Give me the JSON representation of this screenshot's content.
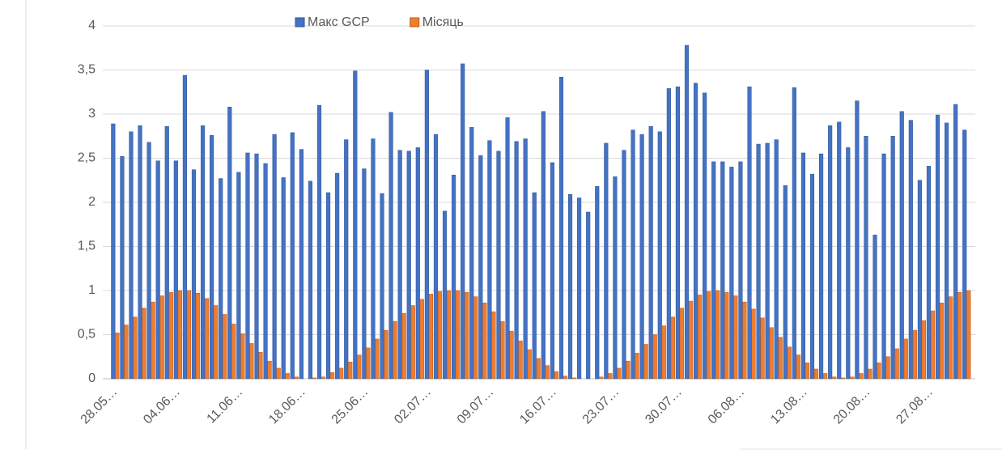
{
  "chart_data": {
    "type": "bar",
    "categories": [
      "28.05…",
      null,
      null,
      null,
      null,
      null,
      null,
      "04.06…",
      null,
      null,
      null,
      null,
      null,
      null,
      "11.06…",
      null,
      null,
      null,
      null,
      null,
      null,
      "18.06…",
      null,
      null,
      null,
      null,
      null,
      null,
      "25.06…",
      null,
      null,
      null,
      null,
      null,
      null,
      "02.07…",
      null,
      null,
      null,
      null,
      null,
      null,
      "09.07…",
      null,
      null,
      null,
      null,
      null,
      null,
      "16.07…",
      null,
      null,
      null,
      null,
      null,
      null,
      "23.07…",
      null,
      null,
      null,
      null,
      null,
      null,
      "30.07…",
      null,
      null,
      null,
      null,
      null,
      null,
      "06.08…",
      null,
      null,
      null,
      null,
      null,
      null,
      "13.08…",
      null,
      null,
      null,
      null,
      null,
      null,
      "20.08…",
      null,
      null,
      null,
      null,
      null,
      null,
      "27.08…",
      null,
      null,
      null,
      null
    ],
    "series": [
      {
        "name": "Макс GCP",
        "color": "#4472c4",
        "values": [
          2.89,
          2.52,
          2.8,
          2.87,
          2.68,
          2.47,
          2.86,
          2.47,
          3.44,
          2.37,
          2.87,
          2.76,
          2.27,
          3.08,
          2.34,
          2.56,
          2.55,
          2.44,
          2.77,
          2.28,
          2.79,
          2.6,
          2.24,
          3.1,
          2.11,
          2.33,
          2.71,
          3.49,
          2.38,
          2.72,
          2.1,
          3.02,
          2.59,
          2.58,
          2.62,
          3.5,
          2.77,
          1.9,
          2.31,
          3.57,
          2.85,
          2.53,
          2.7,
          2.58,
          2.96,
          2.69,
          2.72,
          2.11,
          3.03,
          2.45,
          3.42,
          2.09,
          2.05,
          1.89,
          2.18,
          2.67,
          2.29,
          2.59,
          2.82,
          2.77,
          2.86,
          2.8,
          3.29,
          3.31,
          3.78,
          3.35,
          3.24,
          2.46,
          2.46,
          2.4,
          2.46,
          3.31,
          2.66,
          2.67,
          2.71,
          2.19,
          3.3,
          2.56,
          2.32,
          2.55,
          2.87,
          2.91,
          2.62,
          3.15,
          2.75,
          1.63,
          2.55,
          2.75,
          3.03,
          2.93,
          2.25,
          2.41,
          2.99,
          2.9,
          3.11,
          2.82
        ]
      },
      {
        "name": "Місяць",
        "color": "#ed7d31",
        "values": [
          0.52,
          0.61,
          0.7,
          0.8,
          0.87,
          0.94,
          0.98,
          1,
          1,
          0.97,
          0.91,
          0.83,
          0.73,
          0.62,
          0.51,
          0.4,
          0.3,
          0.2,
          0.12,
          0.06,
          0.02,
          0,
          0.01,
          0.02,
          0.07,
          0.12,
          0.19,
          0.27,
          0.35,
          0.45,
          0.55,
          0.65,
          0.74,
          0.83,
          0.9,
          0.96,
          0.99,
          1,
          1,
          0.98,
          0.93,
          0.86,
          0.76,
          0.65,
          0.54,
          0.43,
          0.33,
          0.23,
          0.15,
          0.08,
          0.03,
          0.01,
          0,
          0,
          0.02,
          0.06,
          0.12,
          0.2,
          0.29,
          0.39,
          0.5,
          0.6,
          0.7,
          0.8,
          0.88,
          0.95,
          0.99,
          1,
          0.98,
          0.94,
          0.87,
          0.79,
          0.69,
          0.58,
          0.47,
          0.36,
          0.27,
          0.18,
          0.11,
          0.06,
          0.02,
          0.01,
          0.02,
          0.06,
          0.11,
          0.18,
          0.25,
          0.34,
          0.45,
          0.55,
          0.66,
          0.77,
          0.86,
          0.93,
          0.98,
          1
        ]
      }
    ],
    "ylim": [
      0,
      4
    ],
    "yticks": [
      0,
      {
        "value": 0.5,
        "label": "0,5"
      },
      1,
      {
        "value": 1.5,
        "label": "1,5"
      },
      2,
      {
        "value": 2.5,
        "label": "2,5"
      },
      3,
      {
        "value": 3.5,
        "label": "3,5"
      },
      4
    ],
    "grid": true,
    "legend": "top"
  }
}
